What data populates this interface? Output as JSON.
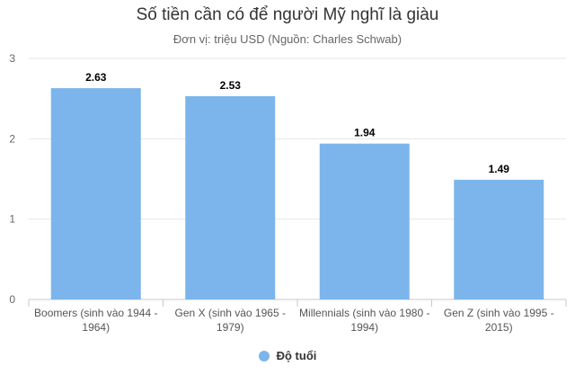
{
  "chart_data": {
    "type": "bar",
    "title": "Số tiền cần có để người Mỹ nghĩ là giàu",
    "subtitle": "Đơn vị: triệu USD (Nguồn: Charles Schwab)",
    "categories": [
      [
        "Boomers (sinh vào 1944 -",
        "1964)"
      ],
      [
        "Gen X (sinh vào 1965 -",
        "1979)"
      ],
      [
        "Millennials (sinh vào 1980 -",
        "1994)"
      ],
      [
        "Gen Z (sinh vào 1995 -",
        "2015)"
      ]
    ],
    "series": [
      {
        "name": "Độ tuổi",
        "values": [
          2.63,
          2.53,
          1.94,
          1.49
        ]
      }
    ],
    "value_labels": [
      "2.63",
      "2.53",
      "1.94",
      "1.49"
    ],
    "ylim": [
      0,
      3
    ],
    "yticks": [
      0,
      1,
      2,
      3
    ],
    "grid": true,
    "legend_position": "bottom-center",
    "bar_color": "#7cb5ec"
  }
}
